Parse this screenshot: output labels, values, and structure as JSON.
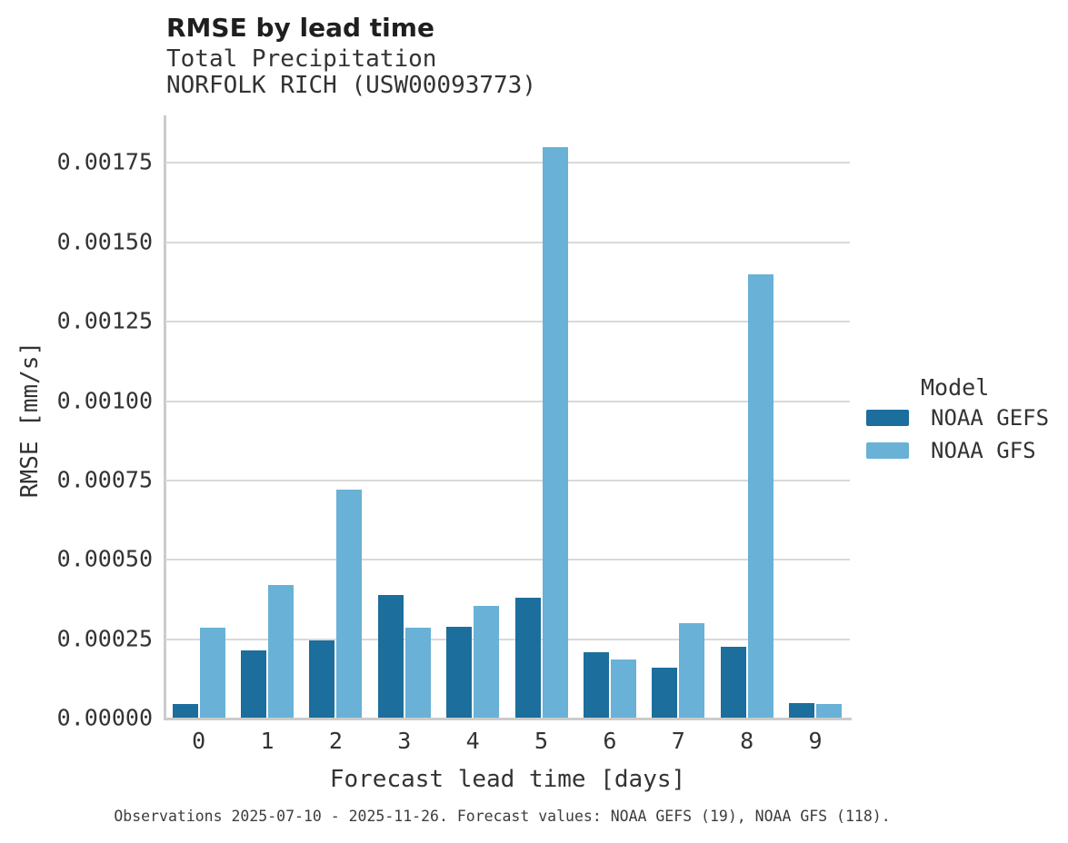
{
  "header": {
    "title": "RMSE by lead time",
    "subtitle_line1": "Total Precipitation",
    "subtitle_line2": "NORFOLK RICH (USW00093773)"
  },
  "chart_data": {
    "type": "bar",
    "title": "RMSE by lead time",
    "subtitle": "Total Precipitation / NORFOLK RICH (USW00093773)",
    "categories": [
      "0",
      "1",
      "2",
      "3",
      "4",
      "5",
      "6",
      "7",
      "8",
      "9"
    ],
    "series": [
      {
        "name": "NOAA GEFS",
        "color": "#1c6e9c",
        "values": [
          4.5e-05,
          0.000215,
          0.000245,
          0.00039,
          0.00029,
          0.00038,
          0.00021,
          0.00016,
          0.000225,
          5e-05
        ]
      },
      {
        "name": "NOAA GFS",
        "color": "#69b1d6",
        "values": [
          0.000285,
          0.00042,
          0.00072,
          0.000285,
          0.000355,
          0.0018,
          0.000185,
          0.0003,
          0.0014,
          4.5e-05
        ]
      }
    ],
    "xlabel": "Forecast lead time [days]",
    "ylabel": "RMSE [mm/s]",
    "ylim": [
      0,
      0.0019
    ],
    "yticks": [
      0.0,
      0.00025,
      0.0005,
      0.00075,
      0.001,
      0.00125,
      0.0015,
      0.00175
    ],
    "ytick_labels": [
      "0.00000",
      "0.00025",
      "0.00050",
      "0.00075",
      "0.00100",
      "0.00125",
      "0.00150",
      "0.00175"
    ],
    "grid": true,
    "legend_title": "Model",
    "legend_position": "right",
    "background": "#ffffff",
    "gridline_color": "#d9d9d9",
    "spine_color": "#cbcbcb"
  },
  "legend": {
    "title": "Model",
    "items": [
      {
        "label": "NOAA GEFS",
        "color": "#1c6e9c"
      },
      {
        "label": "NOAA GFS",
        "color": "#69b1d6"
      }
    ]
  },
  "caption": "Observations 2025-07-10 - 2025-11-26. Forecast values: NOAA GEFS (19), NOAA GFS (118)."
}
